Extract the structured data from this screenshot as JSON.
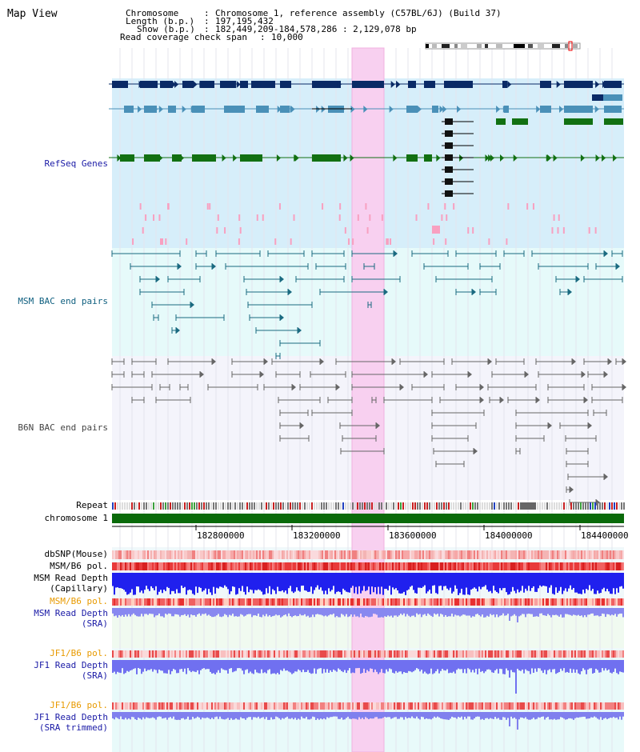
{
  "app_title": "Map View",
  "header": {
    "chromosome_label": "Chromosome",
    "chromosome_value": "Chromosome 1, reference assembly (C57BL/6J) (Build 37)",
    "length_label": "Length (b.p.)",
    "length_value": "197,195,432",
    "show_label": "Show (b.p.)",
    "show_value": "182,449,209-184,578,286 : 2,129,078 bp",
    "coverage_label": "Read coverage check span",
    "coverage_value": "10,000"
  },
  "tracks": {
    "refseq": "RefSeq Genes",
    "msm_bac": "MSM BAC end pairs",
    "b6n_bac": "B6N BAC end pairs",
    "repeat": "Repeat",
    "chromosome": "chromosome 1",
    "dbsnp": "dbSNP(Mouse)",
    "msm_b6_pol": "MSM/B6 pol.",
    "msm_read_depth_cap_1": "MSM Read Depth",
    "msm_read_depth_cap_2": "(Capillary)",
    "msm_b6_pol_2": "MSM/B6 pol.",
    "msm_read_depth_sra_1": "MSM Read Depth",
    "msm_read_depth_sra_2": "(SRA)",
    "jf1_b6_pol": "JF1/B6 pol.",
    "jf1_read_depth_sra_1": "JF1 Read Depth",
    "jf1_read_depth_sra_2": "(SRA)",
    "jf1_b6_pol_2": "JF1/B6 pol.",
    "jf1_read_depth_trim_1": "JF1 Read Depth",
    "jf1_read_depth_trim_2": "(SRA trimmed)"
  },
  "axis": {
    "ticks": [
      "182800000",
      "183200000",
      "183600000",
      "184000000",
      "184400000"
    ]
  },
  "colors": {
    "refseq_bg": "#d6eefa",
    "bac_bg": "#e6fafa",
    "b6n_bg": "#f4f4fb",
    "highlight": "#f8d0f0",
    "gene_navy": "#0a2a66",
    "gene_teal": "#4a90b8",
    "gene_green": "#127012",
    "pink": "#f8a0c0",
    "chromosome_green": "#0a6a0a"
  }
}
